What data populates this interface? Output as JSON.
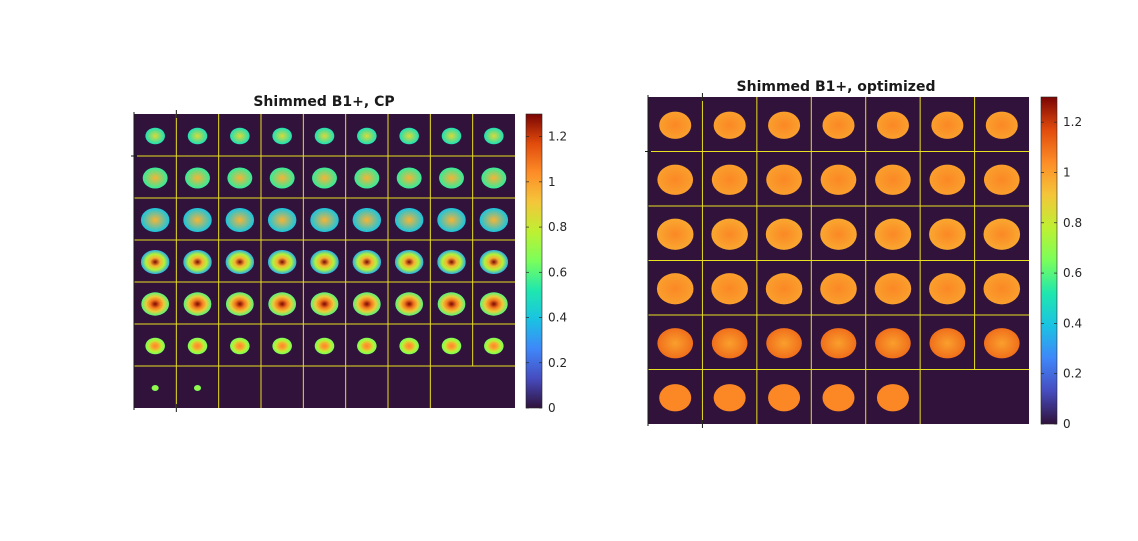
{
  "chart_data": [
    {
      "type": "heatmap",
      "title": "Shimmed B1+, CP",
      "colormap": "turbo",
      "colorbar": {
        "ticks": [
          0,
          0.2,
          0.4,
          0.6,
          0.8,
          1,
          1.2
        ],
        "tick_labels": [
          "0",
          "0.2",
          "0.4",
          "0.6",
          "0.8",
          "1",
          "1.2"
        ],
        "clim": [
          0,
          1.3
        ]
      },
      "grid": {
        "rows": 7,
        "cols": 9,
        "filled_slices": 56,
        "row_col_filled": [
          9,
          9,
          9,
          9,
          9,
          9,
          2
        ]
      },
      "background_color": "#30123b",
      "grid_line_color": "#e8e020",
      "slice_summary": [
        {
          "row": 1,
          "pattern": "gradient",
          "center": 0.85,
          "edge": 0.5,
          "size": 0.55
        },
        {
          "row": 2,
          "pattern": "gradient",
          "center": 0.95,
          "edge": 0.55,
          "size": 0.7
        },
        {
          "row": 3,
          "pattern": "gradient",
          "center": 0.95,
          "edge": 0.4,
          "size": 0.8
        },
        {
          "row": 4,
          "pattern": "central-peak",
          "center": 1.3,
          "edge": 0.35,
          "size": 0.8
        },
        {
          "row": 5,
          "pattern": "central-peak",
          "center": 1.3,
          "edge": 0.6,
          "size": 0.78
        },
        {
          "row": 6,
          "pattern": "central-peak",
          "center": 1.05,
          "edge": 0.65,
          "size": 0.55
        },
        {
          "row": 7,
          "pattern": "small",
          "center": 0.75,
          "edge": 0.65,
          "size": 0.2
        }
      ]
    },
    {
      "type": "heatmap",
      "title": "Shimmed B1+, optimized",
      "colormap": "turbo",
      "colorbar": {
        "ticks": [
          0,
          0.2,
          0.4,
          0.6,
          0.8,
          1,
          1.2
        ],
        "tick_labels": [
          "0",
          "0.2",
          "0.4",
          "0.6",
          "0.8",
          "1",
          "1.2"
        ],
        "clim": [
          0,
          1.3
        ]
      },
      "grid": {
        "rows": 6,
        "cols": 7,
        "filled_slices": 40,
        "row_col_filled": [
          7,
          7,
          7,
          7,
          7,
          5
        ]
      },
      "background_color": "#30123b",
      "grid_line_color": "#e8e020",
      "slice_summary": [
        {
          "row": 1,
          "pattern": "uniform",
          "center": 1.05,
          "edge": 1.0,
          "size": 0.7
        },
        {
          "row": 2,
          "pattern": "uniform",
          "center": 1.05,
          "edge": 1.0,
          "size": 0.78
        },
        {
          "row": 3,
          "pattern": "uniform",
          "center": 1.05,
          "edge": 0.98,
          "size": 0.8
        },
        {
          "row": 4,
          "pattern": "uniform",
          "center": 1.05,
          "edge": 1.0,
          "size": 0.8
        },
        {
          "row": 5,
          "pattern": "uniform",
          "center": 1.0,
          "edge": 1.1,
          "size": 0.78
        },
        {
          "row": 6,
          "pattern": "uniform",
          "center": 1.05,
          "edge": 1.05,
          "size": 0.7
        }
      ]
    }
  ]
}
